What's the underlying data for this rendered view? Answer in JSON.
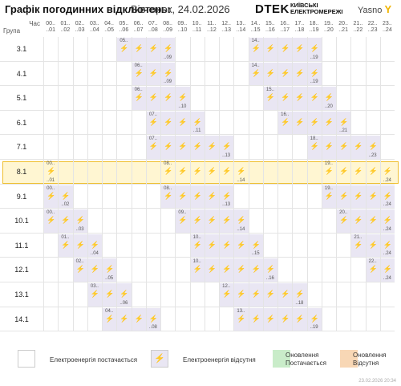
{
  "header": {
    "title": "Графік погодинних відключень:",
    "date": "Вівторок, 24.02.2026",
    "brand_dtek": "DTEK",
    "brand_kyiv": "КИЇВСЬКІ\nЕЛЕКТРОМЕРЕЖІ",
    "brand_yasno": "Yasno"
  },
  "table": {
    "time_label": "Час",
    "group_label": "Група",
    "hours_top": [
      "00..",
      "01..",
      "02..",
      "03..",
      "04..",
      "05..",
      "06..",
      "07..",
      "08..",
      "09..",
      "10..",
      "11..",
      "12..",
      "13..",
      "14..",
      "15..",
      "16..",
      "17..",
      "18..",
      "19..",
      "20..",
      "21..",
      "22..",
      "23.."
    ],
    "hours_bottom": [
      "..01",
      "..02",
      "..03",
      "..04",
      "..05",
      "..06",
      "..07",
      "..08",
      "..09",
      "..10",
      "..11",
      "..12",
      "..13",
      "..14",
      "..15",
      "..16",
      "..17",
      "..18",
      "..19",
      "..20",
      "..21",
      "..22",
      "..23",
      "..24"
    ],
    "selected_group": "8.1",
    "groups": [
      {
        "name": "3.1",
        "off": [
          [
            5,
            9
          ],
          [
            14,
            19
          ]
        ]
      },
      {
        "name": "4.1",
        "off": [
          [
            6,
            9
          ],
          [
            14,
            19
          ]
        ]
      },
      {
        "name": "5.1",
        "off": [
          [
            6,
            10
          ],
          [
            15,
            20
          ]
        ]
      },
      {
        "name": "6.1",
        "off": [
          [
            7,
            11
          ],
          [
            16,
            21
          ]
        ]
      },
      {
        "name": "7.1",
        "off": [
          [
            7,
            13
          ],
          [
            18,
            23
          ]
        ]
      },
      {
        "name": "8.1",
        "off": [
          [
            0,
            1
          ],
          [
            8,
            14
          ],
          [
            19,
            24
          ]
        ]
      },
      {
        "name": "9.1",
        "off": [
          [
            0,
            2
          ],
          [
            8,
            13
          ],
          [
            19,
            24
          ]
        ]
      },
      {
        "name": "10.1",
        "off": [
          [
            0,
            3
          ],
          [
            9,
            14
          ],
          [
            20,
            24
          ]
        ]
      },
      {
        "name": "11.1",
        "off": [
          [
            1,
            4
          ],
          [
            10,
            15
          ],
          [
            21,
            24
          ]
        ]
      },
      {
        "name": "12.1",
        "off": [
          [
            2,
            5
          ],
          [
            10,
            16
          ],
          [
            22,
            24
          ]
        ]
      },
      {
        "name": "13.1",
        "off": [
          [
            3,
            6
          ],
          [
            12,
            18
          ]
        ]
      },
      {
        "name": "14.1",
        "off": [
          [
            4,
            8
          ],
          [
            13,
            19
          ]
        ]
      }
    ]
  },
  "legend": {
    "supplied": "Електроенергія постачається",
    "absent": "Електроенергія відсутня",
    "update_supplied": "Оновлення\nПостачається",
    "update_absent": "Оновлення\nВідсутня",
    "colors": {
      "green": "#c9ecc9",
      "orange": "#f8d7b5",
      "off": "#e9e6f3"
    }
  },
  "footer": "23.02.2026 20:34",
  "icon_off": "power-off-icon"
}
